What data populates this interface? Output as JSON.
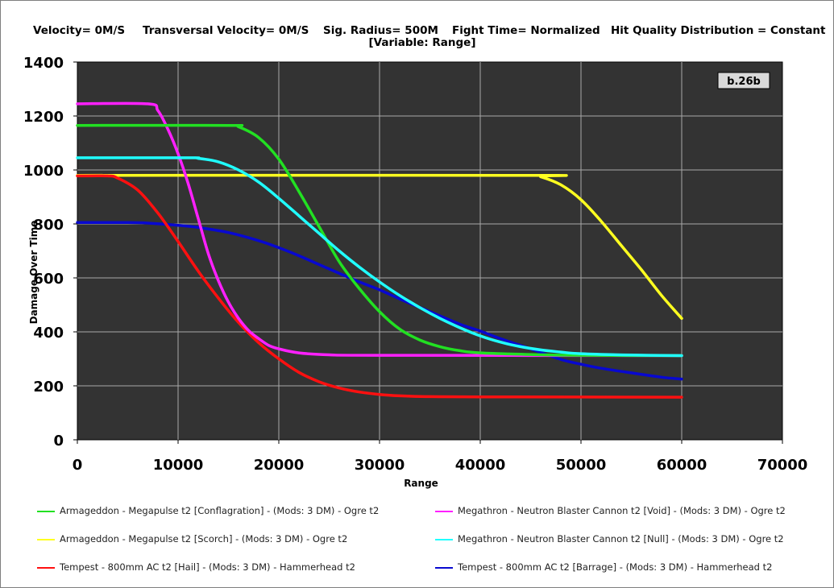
{
  "header": {
    "params": [
      {
        "label": "Velocity= 0M/S"
      },
      {
        "label": "Transversal Velocity= 0M/S"
      },
      {
        "label": "Sig. Radius= 500M"
      },
      {
        "label": "Fight Time= Normalized"
      },
      {
        "label": "Hit Quality Distribution = Constant"
      }
    ],
    "variable": "[Variable: Range]"
  },
  "version_badge": "b.26b",
  "chart_data": {
    "type": "line",
    "xlabel": "Range",
    "ylabel": "Damage Over Time",
    "xlim": [
      0,
      70000
    ],
    "ylim": [
      0,
      1400
    ],
    "xticks": [
      "0",
      "10000",
      "20000",
      "30000",
      "40000",
      "50000",
      "60000",
      "70000"
    ],
    "yticks": [
      "0",
      "200",
      "400",
      "600",
      "800",
      "1000",
      "1200",
      "1400"
    ],
    "grid": true,
    "legend_position": "bottom",
    "series": [
      {
        "name": "Armageddon - Megapulse t2 [Conflagration] - (Mods: 3 DM) - Ogre t2",
        "color": "#22e022",
        "x": [
          0,
          15000,
          16000,
          18000,
          20000,
          22000,
          24000,
          26000,
          28000,
          30000,
          32000,
          34000,
          36000,
          38000,
          40000,
          45000,
          50000,
          60000
        ],
        "y": [
          1165,
          1165,
          1160,
          1120,
          1040,
          920,
          790,
          660,
          560,
          475,
          410,
          370,
          345,
          330,
          322,
          316,
          313,
          312
        ]
      },
      {
        "name": "Megathron - Neutron Blaster Cannon t2 [Void] - (Mods: 3 DM) - Ogre t2",
        "color": "#ff20ff",
        "x": [
          0,
          7000,
          8000,
          9000,
          10000,
          11000,
          12000,
          13000,
          14000,
          15000,
          16000,
          17000,
          18000,
          19000,
          20000,
          22000,
          25000,
          30000,
          60000
        ],
        "y": [
          1245,
          1245,
          1220,
          1150,
          1060,
          950,
          820,
          690,
          590,
          510,
          450,
          405,
          375,
          350,
          337,
          322,
          315,
          313,
          312
        ]
      },
      {
        "name": "Armageddon - Megapulse t2 [Scorch] - (Mods: 3 DM) - Ogre t2",
        "color": "#ffff20",
        "x": [
          0,
          45000,
          46000,
          48000,
          50000,
          52000,
          54000,
          56000,
          58000,
          60000
        ],
        "y": [
          980,
          980,
          975,
          945,
          890,
          810,
          720,
          630,
          535,
          450
        ]
      },
      {
        "name": "Megathron - Neutron Blaster Cannon t2 [Null] - (Mods: 3 DM) - Ogre t2",
        "color": "#20ffff",
        "x": [
          0,
          11000,
          12000,
          14000,
          16000,
          18000,
          20000,
          22000,
          24000,
          26000,
          28000,
          30000,
          32000,
          34000,
          36000,
          38000,
          40000,
          42000,
          44000,
          46000,
          48000,
          50000,
          55000,
          60000
        ],
        "y": [
          1045,
          1045,
          1043,
          1030,
          1000,
          955,
          895,
          830,
          765,
          700,
          640,
          585,
          535,
          490,
          450,
          415,
          385,
          362,
          345,
          333,
          325,
          319,
          314,
          312
        ]
      },
      {
        "name": "Tempest - 800mm AC t2 [Hail] - (Mods: 3 DM) - Hammerhead t2",
        "color": "#ff1010",
        "x": [
          0,
          3000,
          4000,
          6000,
          8000,
          10000,
          12000,
          14000,
          16000,
          18000,
          20000,
          22000,
          24000,
          26000,
          28000,
          30000,
          32000,
          35000,
          40000,
          60000
        ],
        "y": [
          978,
          978,
          970,
          925,
          840,
          735,
          625,
          525,
          435,
          360,
          300,
          250,
          215,
          192,
          177,
          168,
          163,
          160,
          159,
          158
        ]
      },
      {
        "name": "Tempest - 800mm AC t2 [Barrage] - (Mods: 3 DM) - Hammerhead t2",
        "color": "#0808d0",
        "x": [
          0,
          5000,
          7000,
          10000,
          12000,
          15000,
          18000,
          20000,
          22000,
          25000,
          28000,
          30000,
          32000,
          35000,
          38000,
          40000,
          42000,
          45000,
          48000,
          50000,
          52000,
          55000,
          58000,
          60000
        ],
        "y": [
          805,
          805,
          803,
          795,
          787,
          768,
          738,
          712,
          682,
          633,
          585,
          556,
          522,
          475,
          428,
          403,
          375,
          337,
          298,
          280,
          265,
          248,
          232,
          225
        ]
      }
    ]
  }
}
